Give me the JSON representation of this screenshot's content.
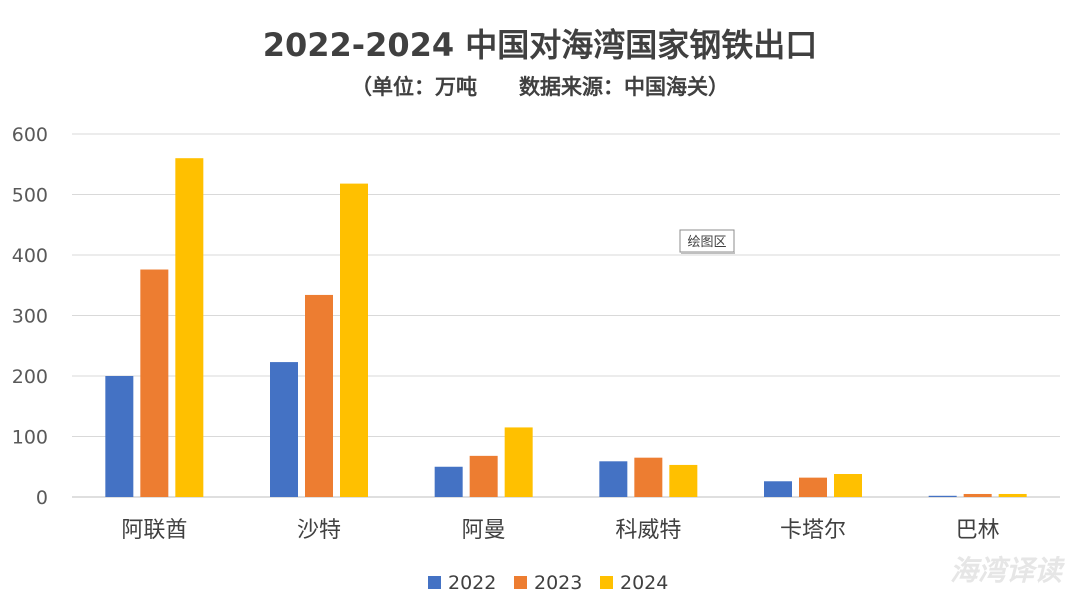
{
  "chart_data": {
    "type": "bar",
    "title": "2022-2024 中国对海湾国家钢铁出口",
    "subtitle": "（单位：万吨　　数据来源：中国海关）",
    "categories": [
      "阿联酋",
      "沙特",
      "阿曼",
      "科威特",
      "卡塔尔",
      "巴林"
    ],
    "series": [
      {
        "name": "2022",
        "color": "#4472c4",
        "values": [
          200,
          223,
          50,
          59,
          26,
          2
        ]
      },
      {
        "name": "2023",
        "color": "#ed7d31",
        "values": [
          376,
          334,
          68,
          65,
          32,
          5
        ]
      },
      {
        "name": "2024",
        "color": "#ffc000",
        "values": [
          560,
          518,
          115,
          53,
          38,
          5
        ]
      }
    ],
    "yticks": [
      "0",
      "100",
      "200",
      "300",
      "400",
      "500",
      "600"
    ],
    "ylim": [
      0,
      600
    ],
    "grid": true,
    "legend_position": "bottom"
  },
  "tooltip": "绘图区",
  "watermark": "海湾译读"
}
